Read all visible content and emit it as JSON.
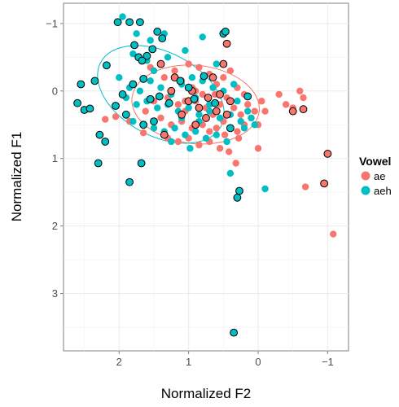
{
  "chart_data": {
    "type": "scatter",
    "title": "",
    "xlabel": "Normalized F2",
    "ylabel": "Normalized F1",
    "x_reversed": true,
    "y_reversed": true,
    "xlim": [
      2.8,
      -1.3
    ],
    "ylim": [
      -1.3,
      3.85
    ],
    "xticks": [
      2,
      1,
      0,
      -1
    ],
    "yticks": [
      -1,
      0,
      1,
      2,
      3
    ],
    "xtick_labels": [
      "2",
      "1",
      "0",
      "−1"
    ],
    "ytick_labels": [
      "−1",
      "0",
      "1",
      "2",
      "3"
    ],
    "grid": true,
    "legend": {
      "title": "Vowel",
      "position": "right"
    },
    "series": [
      {
        "name": "ae",
        "color": "#F8766D",
        "points": [
          [
            1.55,
            -0.35
          ],
          [
            1.35,
            -0.2
          ],
          [
            1.2,
            -0.3
          ],
          [
            1.0,
            -0.4
          ],
          [
            0.85,
            -0.35
          ],
          [
            0.7,
            -0.25
          ],
          [
            1.1,
            -0.15
          ],
          [
            0.95,
            -0.05
          ],
          [
            0.8,
            0.05
          ],
          [
            0.6,
            -0.1
          ],
          [
            0.5,
            -0.2
          ],
          [
            0.4,
            -0.3
          ],
          [
            0.3,
            -0.05
          ],
          [
            0.2,
            0.05
          ],
          [
            1.3,
            0.1
          ],
          [
            1.15,
            0.2
          ],
          [
            1.05,
            0.3
          ],
          [
            0.9,
            0.15
          ],
          [
            0.75,
            0.25
          ],
          [
            0.65,
            0.35
          ],
          [
            0.55,
            0.2
          ],
          [
            0.45,
            0.1
          ],
          [
            0.35,
            0.25
          ],
          [
            0.25,
            0.35
          ],
          [
            0.15,
            0.2
          ],
          [
            0.05,
            0.3
          ],
          [
            -0.05,
            0.15
          ],
          [
            1.4,
            0.4
          ],
          [
            1.25,
            0.5
          ],
          [
            1.1,
            0.45
          ],
          [
            0.95,
            0.55
          ],
          [
            0.8,
            0.5
          ],
          [
            0.7,
            0.6
          ],
          [
            0.6,
            0.55
          ],
          [
            0.5,
            0.45
          ],
          [
            0.4,
            0.55
          ],
          [
            0.3,
            0.6
          ],
          [
            0.2,
            0.5
          ],
          [
            0.1,
            0.4
          ],
          [
            0.0,
            0.5
          ],
          [
            1.3,
            0.7
          ],
          [
            1.15,
            0.75
          ],
          [
            1.0,
            0.7
          ],
          [
            0.85,
            0.8
          ],
          [
            0.7,
            0.75
          ],
          [
            0.55,
            0.85
          ],
          [
            0.42,
            0.9
          ],
          [
            0.0,
            0.85
          ],
          [
            0.9,
            0.0
          ],
          [
            1.05,
            0.15
          ],
          [
            0.62,
            0.05
          ],
          [
            0.28,
            0.7
          ],
          [
            0.48,
            0.65
          ],
          [
            -0.1,
            0.3
          ],
          [
            -0.3,
            0.05
          ],
          [
            -0.4,
            0.2
          ],
          [
            -0.5,
            0.25
          ],
          [
            -0.6,
            0.0
          ],
          [
            -0.65,
            0.1
          ],
          [
            0.32,
            1.07
          ],
          [
            -0.68,
            1.42
          ],
          [
            -1.08,
            2.12
          ],
          [
            1.5,
            0.15
          ],
          [
            1.62,
            0.3
          ],
          [
            1.85,
            0.45
          ],
          [
            2.05,
            0.38
          ],
          [
            2.2,
            0.42
          ],
          [
            1.5,
            0.55
          ],
          [
            1.65,
            0.62
          ]
        ],
        "outlined": [
          [
            1.2,
            -0.2
          ],
          [
            0.95,
            0.0
          ],
          [
            1.1,
            0.35
          ],
          [
            1.0,
            0.15
          ],
          [
            0.85,
            0.25
          ],
          [
            0.72,
            0.1
          ],
          [
            0.6,
            0.3
          ],
          [
            0.75,
            0.4
          ],
          [
            0.55,
            0.05
          ],
          [
            0.45,
            0.35
          ],
          [
            0.4,
            0.15
          ],
          [
            1.25,
            0.0
          ],
          [
            1.4,
            -0.4
          ],
          [
            0.65,
            -0.2
          ],
          [
            0.5,
            -0.4
          ],
          [
            0.45,
            -0.7
          ],
          [
            1.35,
            0.65
          ],
          [
            0.9,
            0.5
          ],
          [
            -0.5,
            0.3
          ],
          [
            -0.65,
            0.27
          ],
          [
            -1.0,
            0.93
          ],
          [
            -0.95,
            1.37
          ]
        ]
      },
      {
        "name": "aeh",
        "color": "#00BFC4",
        "points": [
          [
            1.95,
            -1.1
          ],
          [
            1.75,
            -0.85
          ],
          [
            1.55,
            -0.75
          ],
          [
            1.35,
            -0.85
          ],
          [
            0.8,
            -0.8
          ],
          [
            1.8,
            -0.55
          ],
          [
            1.6,
            -0.45
          ],
          [
            1.3,
            -0.5
          ],
          [
            1.05,
            -0.6
          ],
          [
            2.0,
            -0.2
          ],
          [
            1.85,
            -0.05
          ],
          [
            1.7,
            0.0
          ],
          [
            1.55,
            -0.15
          ],
          [
            1.4,
            -0.05
          ],
          [
            1.25,
            0.05
          ],
          [
            1.1,
            -0.1
          ],
          [
            0.95,
            -0.2
          ],
          [
            0.8,
            -0.15
          ],
          [
            0.65,
            -0.05
          ],
          [
            0.5,
            0.0
          ],
          [
            0.35,
            -0.1
          ],
          [
            1.9,
            0.1
          ],
          [
            1.75,
            0.2
          ],
          [
            1.6,
            0.15
          ],
          [
            1.45,
            0.25
          ],
          [
            1.3,
            0.2
          ],
          [
            1.15,
            0.3
          ],
          [
            1.0,
            0.25
          ],
          [
            0.85,
            0.35
          ],
          [
            0.7,
            0.3
          ],
          [
            0.55,
            0.4
          ],
          [
            0.4,
            0.35
          ],
          [
            0.25,
            0.45
          ],
          [
            0.1,
            0.4
          ],
          [
            1.8,
            0.45
          ],
          [
            1.65,
            0.5
          ],
          [
            1.5,
            0.55
          ],
          [
            1.35,
            0.6
          ],
          [
            1.2,
            0.55
          ],
          [
            1.05,
            0.65
          ],
          [
            0.9,
            0.6
          ],
          [
            0.75,
            0.7
          ],
          [
            0.6,
            0.65
          ],
          [
            0.45,
            0.75
          ],
          [
            1.25,
            0.75
          ],
          [
            0.98,
            0.85
          ],
          [
            0.4,
            1.22
          ],
          [
            0.2,
            0.55
          ],
          [
            0.05,
            0.5
          ],
          [
            -0.1,
            1.45
          ],
          [
            0.9,
            0.1
          ],
          [
            1.5,
            -0.3
          ],
          [
            1.2,
            -0.2
          ],
          [
            0.6,
            -0.4
          ],
          [
            0.7,
            0.2
          ],
          [
            0.3,
            0.15
          ],
          [
            0.15,
            0.3
          ],
          [
            0.85,
            0.45
          ],
          [
            1.1,
            0.4
          ]
        ],
        "outlined": [
          [
            2.6,
            0.18
          ],
          [
            2.5,
            0.28
          ],
          [
            2.42,
            0.26
          ],
          [
            2.55,
            -0.1
          ],
          [
            2.35,
            -0.15
          ],
          [
            2.18,
            -0.38
          ],
          [
            2.28,
            0.65
          ],
          [
            2.2,
            0.75
          ],
          [
            2.3,
            1.07
          ],
          [
            1.85,
            1.35
          ],
          [
            1.68,
            1.07
          ],
          [
            1.65,
            0.5
          ],
          [
            1.5,
            0.45
          ],
          [
            2.05,
            0.22
          ],
          [
            1.9,
            0.35
          ],
          [
            1.95,
            0.05
          ],
          [
            1.8,
            -0.1
          ],
          [
            1.65,
            -0.18
          ],
          [
            1.55,
            0.12
          ],
          [
            1.42,
            0.08
          ],
          [
            1.72,
            -0.5
          ],
          [
            1.6,
            -0.52
          ],
          [
            1.52,
            -0.62
          ],
          [
            1.38,
            -0.78
          ],
          [
            1.78,
            -0.68
          ],
          [
            1.67,
            -0.45
          ],
          [
            2.02,
            -1.02
          ],
          [
            1.85,
            -1.02
          ],
          [
            1.7,
            -1.02
          ],
          [
            1.45,
            -0.88
          ],
          [
            0.5,
            -0.85
          ],
          [
            0.47,
            -0.88
          ],
          [
            0.78,
            -0.22
          ],
          [
            1.12,
            -0.15
          ],
          [
            1.0,
            -0.05
          ],
          [
            1.28,
            0.18
          ],
          [
            0.92,
            0.12
          ],
          [
            0.62,
            0.18
          ],
          [
            0.4,
            0.55
          ],
          [
            0.15,
            0.08
          ],
          [
            0.3,
            1.58
          ],
          [
            0.27,
            1.48
          ],
          [
            0.35,
            3.58
          ]
        ]
      }
    ],
    "ellipses": [
      {
        "series": "ae",
        "center": [
          0.9,
          0.2
        ],
        "rx": 0.92,
        "ry": 0.58,
        "angle_deg": 6
      },
      {
        "series": "aeh",
        "center": [
          1.4,
          0.05
        ],
        "rx": 0.98,
        "ry": 0.62,
        "angle_deg": 28
      }
    ]
  }
}
